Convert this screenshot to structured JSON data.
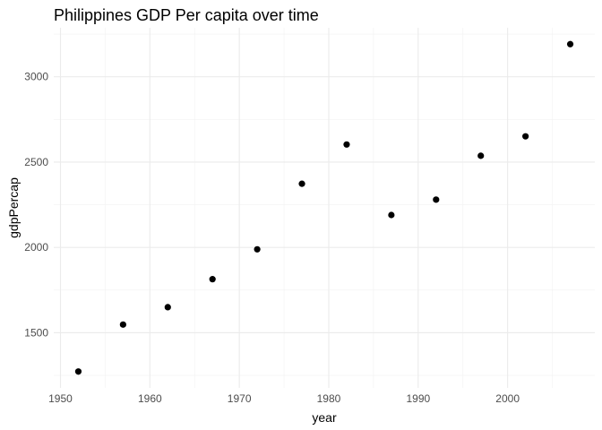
{
  "chart_data": {
    "type": "scatter",
    "title": "Philippines GDP Per capita over time",
    "xlabel": "year",
    "ylabel": "gdpPercap",
    "x": [
      1952,
      1957,
      1962,
      1967,
      1972,
      1977,
      1982,
      1987,
      1992,
      1997,
      2002,
      2007
    ],
    "y": [
      1273,
      1548,
      1650,
      1814,
      1989,
      2373,
      2603,
      2190,
      2280,
      2537,
      2651,
      3191
    ],
    "xlim": [
      1949.25,
      2009.75
    ],
    "ylim": [
      1177.1,
      3286.9
    ],
    "xticks": [
      1950,
      1960,
      1970,
      1980,
      1990,
      2000
    ],
    "xtick_labels": [
      "1950",
      "1960",
      "1970",
      "1980",
      "1990",
      "2000"
    ],
    "yticks": [
      1500,
      2000,
      2500,
      3000
    ],
    "ytick_labels": [
      "1500",
      "2000",
      "2500",
      "3000"
    ],
    "grid": true,
    "point_color": "#000000",
    "grid_color": "#ebebeb"
  }
}
